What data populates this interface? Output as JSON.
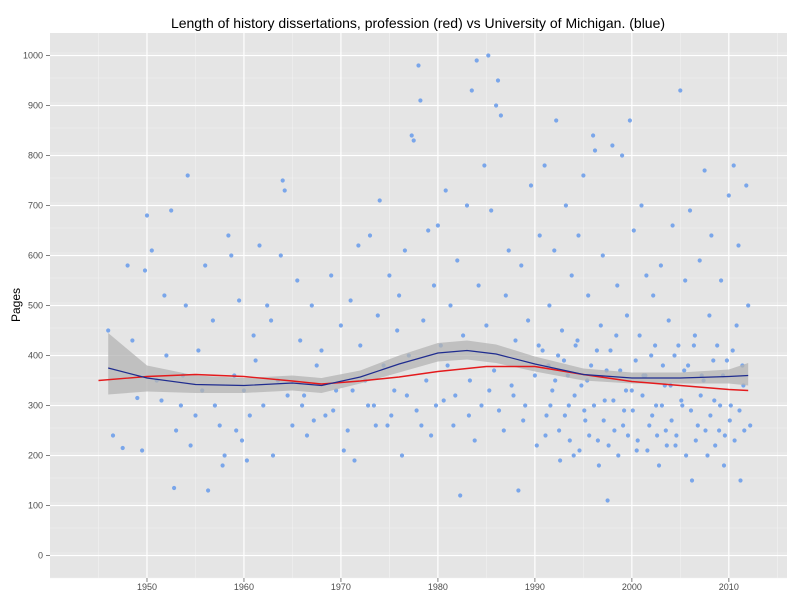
{
  "chart_data": {
    "type": "scatter",
    "title": "Length of history dissertations, profession (red) vs University of Michigan. (blue)",
    "xlabel": "",
    "ylabel": "Pages",
    "xlim": [
      1940,
      2016
    ],
    "ylim": [
      -45,
      1045
    ],
    "x_ticks": [
      1950,
      1960,
      1970,
      1980,
      1990,
      2000,
      2010
    ],
    "y_ticks": [
      0,
      100,
      200,
      300,
      400,
      500,
      600,
      700,
      800,
      900,
      1000
    ],
    "grid": true,
    "legend": "none",
    "colors": {
      "panel_background": "#e5e5e5",
      "grid_major": "#ffffff",
      "grid_minor": "#f2f2f2",
      "points": "#7aa6ea",
      "profession_line": "#e41a1c",
      "michigan_line": "#1f2c8f",
      "confidence_band": "#b3b3b3"
    },
    "points": [
      [
        1946,
        450
      ],
      [
        1946.5,
        240
      ],
      [
        1947.5,
        215
      ],
      [
        1948,
        580
      ],
      [
        1948.5,
        430
      ],
      [
        1949,
        315
      ],
      [
        1949.5,
        210
      ],
      [
        1949.8,
        570
      ],
      [
        1950,
        680
      ],
      [
        1950.5,
        610
      ],
      [
        1951,
        350
      ],
      [
        1951.5,
        310
      ],
      [
        1951.8,
        520
      ],
      [
        1952,
        400
      ],
      [
        1952.5,
        690
      ],
      [
        1952.8,
        135
      ],
      [
        1953,
        250
      ],
      [
        1953.5,
        300
      ],
      [
        1953.7,
        360
      ],
      [
        1954,
        500
      ],
      [
        1954.2,
        760
      ],
      [
        1954.5,
        220
      ],
      [
        1955,
        280
      ],
      [
        1955.3,
        410
      ],
      [
        1955.7,
        330
      ],
      [
        1956,
        580
      ],
      [
        1956.3,
        130
      ],
      [
        1956.8,
        470
      ],
      [
        1957,
        300
      ],
      [
        1957.5,
        260
      ],
      [
        1957.8,
        180
      ],
      [
        1958,
        200
      ],
      [
        1958.4,
        640
      ],
      [
        1958.7,
        600
      ],
      [
        1959,
        360
      ],
      [
        1959.2,
        250
      ],
      [
        1959.5,
        510
      ],
      [
        1959.8,
        230
      ],
      [
        1960,
        330
      ],
      [
        1960.3,
        190
      ],
      [
        1960.6,
        280
      ],
      [
        1961,
        440
      ],
      [
        1961.2,
        390
      ],
      [
        1961.6,
        620
      ],
      [
        1962,
        300
      ],
      [
        1962.4,
        500
      ],
      [
        1962.8,
        470
      ],
      [
        1963,
        200
      ],
      [
        1963.5,
        350
      ],
      [
        1963.8,
        600
      ],
      [
        1964,
        750
      ],
      [
        1964.2,
        730
      ],
      [
        1964.5,
        320
      ],
      [
        1965,
        260
      ],
      [
        1965.5,
        550
      ],
      [
        1965.8,
        430
      ],
      [
        1966,
        300
      ],
      [
        1966.5,
        240
      ],
      [
        1967,
        500
      ],
      [
        1967.5,
        380
      ],
      [
        1968,
        410
      ],
      [
        1968.4,
        280
      ],
      [
        1969,
        560
      ],
      [
        1969.5,
        330
      ],
      [
        1970,
        460
      ],
      [
        1970.3,
        210
      ],
      [
        1970.7,
        250
      ],
      [
        1971,
        510
      ],
      [
        1971.4,
        190
      ],
      [
        1971.8,
        620
      ],
      [
        1972,
        420
      ],
      [
        1972.5,
        350
      ],
      [
        1973,
        640
      ],
      [
        1973.4,
        300
      ],
      [
        1973.8,
        480
      ],
      [
        1974,
        710
      ],
      [
        1974.4,
        380
      ],
      [
        1974.8,
        260
      ],
      [
        1975,
        560
      ],
      [
        1975.5,
        330
      ],
      [
        1975.8,
        450
      ],
      [
        1976,
        520
      ],
      [
        1976.3,
        200
      ],
      [
        1976.6,
        610
      ],
      [
        1977,
        400
      ],
      [
        1977.3,
        840
      ],
      [
        1977.5,
        830
      ],
      [
        1977.8,
        290
      ],
      [
        1978,
        980
      ],
      [
        1978.2,
        910
      ],
      [
        1978.5,
        470
      ],
      [
        1978.8,
        350
      ],
      [
        1979,
        650
      ],
      [
        1979.3,
        240
      ],
      [
        1979.6,
        540
      ],
      [
        1980,
        660
      ],
      [
        1980.3,
        420
      ],
      [
        1980.6,
        310
      ],
      [
        1980.8,
        730
      ],
      [
        1981,
        380
      ],
      [
        1981.3,
        500
      ],
      [
        1981.6,
        260
      ],
      [
        1982,
        590
      ],
      [
        1982.3,
        120
      ],
      [
        1982.6,
        440
      ],
      [
        1983,
        700
      ],
      [
        1983.3,
        350
      ],
      [
        1983.5,
        930
      ],
      [
        1983.8,
        230
      ],
      [
        1984,
        990
      ],
      [
        1984.2,
        540
      ],
      [
        1984.5,
        300
      ],
      [
        1984.8,
        780
      ],
      [
        1985,
        460
      ],
      [
        1985.2,
        1000
      ],
      [
        1985.5,
        690
      ],
      [
        1985.8,
        370
      ],
      [
        1986,
        900
      ],
      [
        1986.2,
        950
      ],
      [
        1986.5,
        880
      ],
      [
        1986.8,
        250
      ],
      [
        1987,
        520
      ],
      [
        1987.3,
        610
      ],
      [
        1987.6,
        340
      ],
      [
        1988,
        430
      ],
      [
        1988.3,
        130
      ],
      [
        1988.6,
        580
      ],
      [
        1989,
        300
      ],
      [
        1989.3,
        470
      ],
      [
        1989.6,
        740
      ],
      [
        1990,
        360
      ],
      [
        1990.2,
        220
      ],
      [
        1990.5,
        640
      ],
      [
        1990.8,
        410
      ],
      [
        1991,
        780
      ],
      [
        1991.2,
        280
      ],
      [
        1991.5,
        500
      ],
      [
        1991.8,
        330
      ],
      [
        1992,
        610
      ],
      [
        1992.2,
        870
      ],
      [
        1992.5,
        250
      ],
      [
        1992.8,
        450
      ],
      [
        1993,
        390
      ],
      [
        1993.2,
        700
      ],
      [
        1993.5,
        300
      ],
      [
        1993.8,
        560
      ],
      [
        1994,
        200
      ],
      [
        1994.2,
        420
      ],
      [
        1994.5,
        640
      ],
      [
        1994.8,
        340
      ],
      [
        1995,
        760
      ],
      [
        1995.2,
        270
      ],
      [
        1995.5,
        520
      ],
      [
        1995.8,
        380
      ],
      [
        1996,
        840
      ],
      [
        1996.2,
        810
      ],
      [
        1996.5,
        230
      ],
      [
        1996.8,
        460
      ],
      [
        1997,
        600
      ],
      [
        1997.2,
        310
      ],
      [
        1997.5,
        110
      ],
      [
        1997.8,
        410
      ],
      [
        1998,
        820
      ],
      [
        1998.2,
        250
      ],
      [
        1998.5,
        540
      ],
      [
        1998.8,
        370
      ],
      [
        1999,
        800
      ],
      [
        1999.2,
        290
      ],
      [
        1999.5,
        480
      ],
      [
        1999.8,
        870
      ],
      [
        2000,
        330
      ],
      [
        2000.2,
        650
      ],
      [
        2000.5,
        210
      ],
      [
        2000.8,
        440
      ],
      [
        2001,
        700
      ],
      [
        2001.2,
        360
      ],
      [
        2001.5,
        560
      ],
      [
        2001.8,
        260
      ],
      [
        2002,
        400
      ],
      [
        2002.2,
        520
      ],
      [
        2002.5,
        300
      ],
      [
        2002.8,
        180
      ],
      [
        2003,
        580
      ],
      [
        2003.2,
        380
      ],
      [
        2003.5,
        250
      ],
      [
        2003.8,
        470
      ],
      [
        2004,
        340
      ],
      [
        2004.2,
        660
      ],
      [
        2004.5,
        220
      ],
      [
        2004.8,
        420
      ],
      [
        2005,
        930
      ],
      [
        2005.2,
        300
      ],
      [
        2005.5,
        550
      ],
      [
        2005.8,
        380
      ],
      [
        2006,
        690
      ],
      [
        2006.2,
        150
      ],
      [
        2006.5,
        440
      ],
      [
        2006.8,
        260
      ],
      [
        2007,
        590
      ],
      [
        2007.2,
        360
      ],
      [
        2007.5,
        770
      ],
      [
        2007.8,
        200
      ],
      [
        2008,
        480
      ],
      [
        2008.2,
        640
      ],
      [
        2008.5,
        310
      ],
      [
        2008.8,
        420
      ],
      [
        2009,
        250
      ],
      [
        2009.2,
        550
      ],
      [
        2009.5,
        180
      ],
      [
        2009.8,
        390
      ],
      [
        2010,
        720
      ],
      [
        2010.2,
        300
      ],
      [
        2010.5,
        780
      ],
      [
        2010.8,
        460
      ],
      [
        2011,
        620
      ],
      [
        2011.2,
        150
      ],
      [
        2011.5,
        340
      ],
      [
        2011.8,
        740
      ],
      [
        2012,
        500
      ],
      [
        2012.2,
        260
      ],
      [
        1991.1,
        240
      ],
      [
        1991.6,
        300
      ],
      [
        1992.1,
        350
      ],
      [
        1992.6,
        190
      ],
      [
        1993.1,
        280
      ],
      [
        1993.6,
        230
      ],
      [
        1994.1,
        320
      ],
      [
        1994.6,
        210
      ],
      [
        1995.1,
        290
      ],
      [
        1995.6,
        240
      ],
      [
        1996.1,
        300
      ],
      [
        1996.6,
        180
      ],
      [
        1997.1,
        270
      ],
      [
        1997.6,
        220
      ],
      [
        1998.1,
        310
      ],
      [
        1998.6,
        200
      ],
      [
        1999.1,
        260
      ],
      [
        1999.6,
        240
      ],
      [
        2000.1,
        290
      ],
      [
        2000.6,
        230
      ],
      [
        2001.1,
        320
      ],
      [
        2001.6,
        210
      ],
      [
        2002.1,
        280
      ],
      [
        2002.6,
        240
      ],
      [
        2003.1,
        300
      ],
      [
        2003.6,
        220
      ],
      [
        2004.1,
        270
      ],
      [
        2004.6,
        240
      ],
      [
        2005.1,
        310
      ],
      [
        2005.6,
        200
      ],
      [
        2006.1,
        290
      ],
      [
        2006.6,
        230
      ],
      [
        2007.1,
        320
      ],
      [
        2007.6,
        250
      ],
      [
        2008.1,
        280
      ],
      [
        2008.6,
        220
      ],
      [
        2009.1,
        300
      ],
      [
        2009.6,
        240
      ],
      [
        2010.1,
        270
      ],
      [
        2010.6,
        230
      ],
      [
        2011.1,
        290
      ],
      [
        2011.6,
        250
      ],
      [
        1990.4,
        420
      ],
      [
        1991.4,
        380
      ],
      [
        1992.4,
        400
      ],
      [
        1993.4,
        360
      ],
      [
        1994.4,
        430
      ],
      [
        1995.4,
        350
      ],
      [
        1996.4,
        410
      ],
      [
        1997.4,
        370
      ],
      [
        1998.4,
        440
      ],
      [
        1999.4,
        330
      ],
      [
        2000.4,
        390
      ],
      [
        2001.4,
        360
      ],
      [
        2002.4,
        420
      ],
      [
        2003.4,
        340
      ],
      [
        2004.4,
        400
      ],
      [
        2005.4,
        370
      ],
      [
        2006.4,
        420
      ],
      [
        2007.4,
        350
      ],
      [
        2008.4,
        390
      ],
      [
        2009.4,
        360
      ],
      [
        2010.4,
        410
      ],
      [
        2011.4,
        380
      ],
      [
        1975.2,
        280
      ],
      [
        1976.8,
        320
      ],
      [
        1978.3,
        260
      ],
      [
        1979.8,
        300
      ],
      [
        1981.8,
        320
      ],
      [
        1983.2,
        280
      ],
      [
        1985.3,
        330
      ],
      [
        1986.3,
        290
      ],
      [
        1987.8,
        320
      ],
      [
        1988.8,
        270
      ],
      [
        1972.8,
        300
      ],
      [
        1973.6,
        260
      ],
      [
        1971.2,
        330
      ],
      [
        1969.2,
        290
      ],
      [
        1967.2,
        270
      ],
      [
        1966.2,
        320
      ]
    ],
    "series": [
      {
        "values": [
          [
            1945,
            350
          ],
          [
            1950,
            358
          ],
          [
            1955,
            362
          ],
          [
            1960,
            358
          ],
          [
            1965,
            349
          ],
          [
            1968,
            343
          ],
          [
            1972,
            349
          ],
          [
            1976,
            357
          ],
          [
            1980,
            368
          ],
          [
            1985,
            378
          ],
          [
            1990,
            378
          ],
          [
            1995,
            362
          ],
          [
            2000,
            348
          ],
          [
            2005,
            340
          ],
          [
            2010,
            332
          ],
          [
            2012,
            330
          ]
        ]
      },
      {
        "values": [
          [
            1946,
            375
          ],
          [
            1950,
            355
          ],
          [
            1955,
            342
          ],
          [
            1960,
            340
          ],
          [
            1965,
            345
          ],
          [
            1968,
            340
          ],
          [
            1972,
            357
          ],
          [
            1976,
            383
          ],
          [
            1980,
            405
          ],
          [
            1983,
            410
          ],
          [
            1986,
            403
          ],
          [
            1990,
            383
          ],
          [
            1995,
            362
          ],
          [
            2000,
            355
          ],
          [
            2005,
            355
          ],
          [
            2010,
            358
          ],
          [
            2012,
            360
          ]
        ],
        "band_upper": [
          [
            1946,
            445
          ],
          [
            1950,
            380
          ],
          [
            1955,
            360
          ],
          [
            1960,
            355
          ],
          [
            1965,
            360
          ],
          [
            1968,
            355
          ],
          [
            1972,
            370
          ],
          [
            1976,
            400
          ],
          [
            1980,
            425
          ],
          [
            1983,
            430
          ],
          [
            1986,
            422
          ],
          [
            1990,
            398
          ],
          [
            1995,
            374
          ],
          [
            2000,
            366
          ],
          [
            2005,
            366
          ],
          [
            2010,
            372
          ],
          [
            2012,
            385
          ]
        ],
        "band_lower": [
          [
            1946,
            322
          ],
          [
            1950,
            328
          ],
          [
            1955,
            325
          ],
          [
            1960,
            325
          ],
          [
            1965,
            330
          ],
          [
            1968,
            325
          ],
          [
            1972,
            344
          ],
          [
            1976,
            366
          ],
          [
            1980,
            388
          ],
          [
            1983,
            392
          ],
          [
            1986,
            385
          ],
          [
            1990,
            368
          ],
          [
            1995,
            350
          ],
          [
            2000,
            344
          ],
          [
            2005,
            344
          ],
          [
            2010,
            344
          ],
          [
            2012,
            340
          ]
        ]
      }
    ]
  }
}
